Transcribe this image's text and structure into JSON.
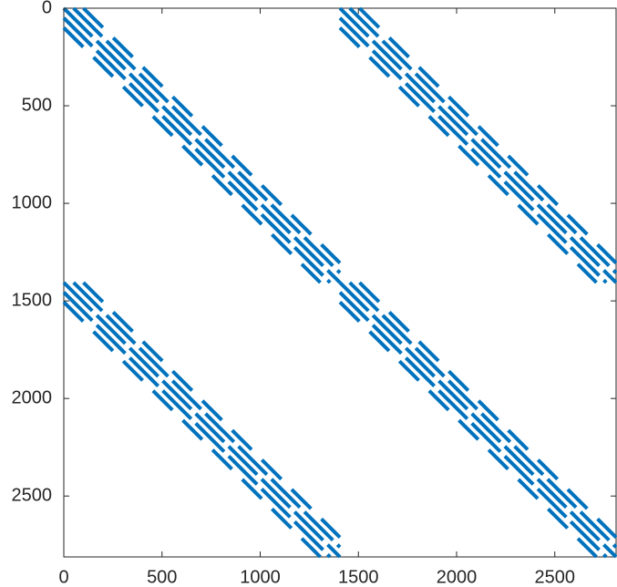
{
  "chart_data": {
    "type": "spy",
    "color": "#0072bd",
    "xlim": [
      0,
      2812
    ],
    "ylim": [
      0,
      2812
    ],
    "xticks": [
      0,
      500,
      1000,
      1500,
      2000,
      2500
    ],
    "yticks": [
      0,
      500,
      1000,
      1500,
      2000,
      2500
    ],
    "blocks": [
      {
        "row": 0,
        "col": 0,
        "size": 1406
      },
      {
        "row": 0,
        "col": 1406,
        "size": 1406
      },
      {
        "row": 1406,
        "col": 0,
        "size": 1406
      },
      {
        "row": 1406,
        "col": 1406,
        "size": 1406
      }
    ],
    "diagonals": [
      -100,
      -50,
      0,
      50,
      100
    ]
  }
}
